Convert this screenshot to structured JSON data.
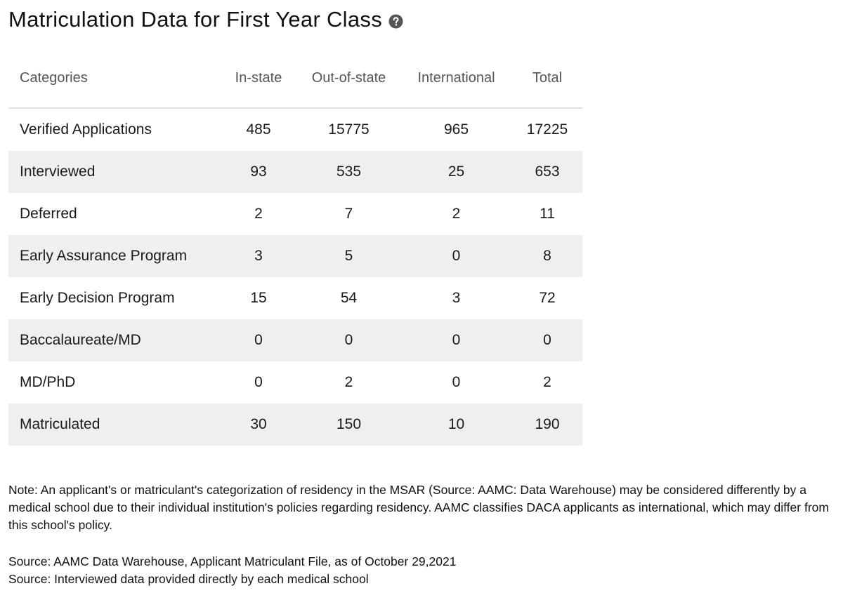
{
  "header": {
    "title": "Matriculation Data for First Year Class",
    "help_icon": "question-circle-icon"
  },
  "table": {
    "columns": [
      "Categories",
      "In-state",
      "Out-of-state",
      "International",
      "Total"
    ],
    "rows": [
      {
        "category": "Verified Applications",
        "in_state": "485",
        "out_of_state": "15775",
        "international": "965",
        "total": "17225"
      },
      {
        "category": "Interviewed",
        "in_state": "93",
        "out_of_state": "535",
        "international": "25",
        "total": "653"
      },
      {
        "category": "Deferred",
        "in_state": "2",
        "out_of_state": "7",
        "international": "2",
        "total": "11"
      },
      {
        "category": "Early Assurance Program",
        "in_state": "3",
        "out_of_state": "5",
        "international": "0",
        "total": "8"
      },
      {
        "category": "Early Decision Program",
        "in_state": "15",
        "out_of_state": "54",
        "international": "3",
        "total": "72"
      },
      {
        "category": "Baccalaureate/MD",
        "in_state": "0",
        "out_of_state": "0",
        "international": "0",
        "total": "0"
      },
      {
        "category": "MD/PhD",
        "in_state": "0",
        "out_of_state": "2",
        "international": "0",
        "total": "2"
      },
      {
        "category": "Matriculated",
        "in_state": "30",
        "out_of_state": "150",
        "international": "10",
        "total": "190"
      }
    ]
  },
  "note": "Note:  An applicant's or matriculant's categorization of residency in the MSAR (Source: AAMC: Data Warehouse) may be considered differently by a medical school due to their individual institution's policies regarding residency. AAMC classifies DACA applicants as international, which may differ from this school's policy.",
  "sources": [
    "Source: AAMC Data Warehouse, Applicant Matriculant File, as of October 29,2021",
    "Source: Interviewed data provided directly by each medical school"
  ],
  "colors": {
    "striped_row": "#efefef",
    "header_text": "#555555",
    "divider": "#e3e3e3",
    "help_icon": "#555555"
  }
}
